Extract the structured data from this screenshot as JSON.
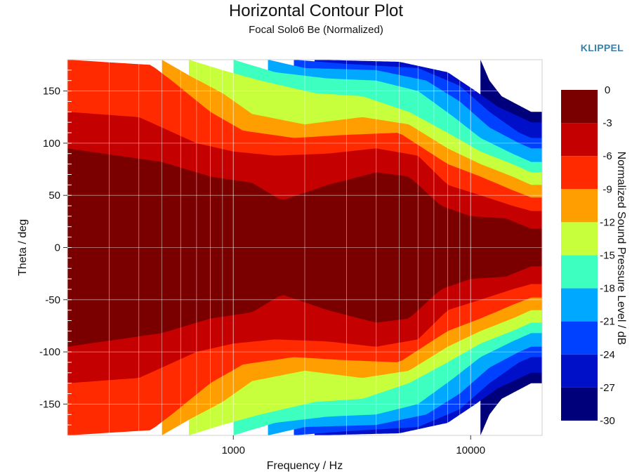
{
  "header": {
    "title": "Horizontal Contour Plot",
    "subtitle": "Focal Solo6 Be (Normalized)",
    "brand": "KLIPPEL",
    "brand_color": "#3a7fa8"
  },
  "chart_data": {
    "type": "heatmap",
    "title": "Horizontal Contour Plot",
    "subtitle": "Focal Solo6 Be (Normalized)",
    "xlabel": "Frequency / Hz",
    "ylabel": "Theta / deg",
    "x_scale": "log",
    "xlim": [
      200,
      20000
    ],
    "ylim": [
      -180,
      180
    ],
    "x_ticks": [
      {
        "value": 1000,
        "label": "1000"
      },
      {
        "value": 10000,
        "label": "10000"
      }
    ],
    "y_ticks": [
      {
        "value": 150,
        "label": "150"
      },
      {
        "value": 100,
        "label": "100"
      },
      {
        "value": 50,
        "label": "50"
      },
      {
        "value": 0,
        "label": "0"
      },
      {
        "value": -50,
        "label": "-50"
      },
      {
        "value": -100,
        "label": "-100"
      },
      {
        "value": -150,
        "label": "-150"
      }
    ],
    "grid": true,
    "colorbar": {
      "label": "Normalized Sound Pressure Level / dB",
      "range": [
        -30,
        0
      ],
      "ticks": [
        {
          "value": 0,
          "label": "0"
        },
        {
          "value": -3,
          "label": "-3"
        },
        {
          "value": -6,
          "label": "-6"
        },
        {
          "value": -9,
          "label": "-9"
        },
        {
          "value": -12,
          "label": "-12"
        },
        {
          "value": -15,
          "label": "-15"
        },
        {
          "value": -18,
          "label": "-18"
        },
        {
          "value": -21,
          "label": "-21"
        },
        {
          "value": -24,
          "label": "-24"
        },
        {
          "value": -27,
          "label": "-27"
        },
        {
          "value": -30,
          "label": "-30"
        }
      ],
      "bands": [
        {
          "from": 0,
          "to": -3,
          "color": "#7a0000"
        },
        {
          "from": -3,
          "to": -6,
          "color": "#c40000"
        },
        {
          "from": -6,
          "to": -9,
          "color": "#ff2a00"
        },
        {
          "from": -9,
          "to": -12,
          "color": "#ff9e00"
        },
        {
          "from": -12,
          "to": -15,
          "color": "#c8ff3c"
        },
        {
          "from": -15,
          "to": -18,
          "color": "#3cffc0"
        },
        {
          "from": -18,
          "to": -21,
          "color": "#00a8ff"
        },
        {
          "from": -21,
          "to": -24,
          "color": "#0040ff"
        },
        {
          "from": -24,
          "to": -27,
          "color": "#0010c8"
        },
        {
          "from": -27,
          "to": -30,
          "color": "#00007a"
        }
      ]
    },
    "contours": [
      {
        "level": -3,
        "half_width_deg": [
          {
            "f": 200,
            "deg": 95
          },
          {
            "f": 500,
            "deg": 82
          },
          {
            "f": 800,
            "deg": 68
          },
          {
            "f": 1200,
            "deg": 62
          },
          {
            "f": 1600,
            "deg": 45
          },
          {
            "f": 2500,
            "deg": 60
          },
          {
            "f": 4000,
            "deg": 72
          },
          {
            "f": 5500,
            "deg": 68
          },
          {
            "f": 7500,
            "deg": 40
          },
          {
            "f": 10000,
            "deg": 30
          },
          {
            "f": 14000,
            "deg": 28
          },
          {
            "f": 18000,
            "deg": 18
          }
        ]
      },
      {
        "level": -6,
        "half_width_deg": [
          {
            "f": 200,
            "deg": 130
          },
          {
            "f": 400,
            "deg": 125
          },
          {
            "f": 700,
            "deg": 100
          },
          {
            "f": 1000,
            "deg": 92
          },
          {
            "f": 1500,
            "deg": 88
          },
          {
            "f": 2500,
            "deg": 90
          },
          {
            "f": 4000,
            "deg": 95
          },
          {
            "f": 6000,
            "deg": 88
          },
          {
            "f": 8000,
            "deg": 60
          },
          {
            "f": 11000,
            "deg": 50
          },
          {
            "f": 15000,
            "deg": 40
          },
          {
            "f": 18000,
            "deg": 35
          }
        ]
      },
      {
        "level": -9,
        "half_width_deg": [
          {
            "f": 200,
            "deg": 180
          },
          {
            "f": 450,
            "deg": 175
          },
          {
            "f": 550,
            "deg": 160
          },
          {
            "f": 800,
            "deg": 130
          },
          {
            "f": 1100,
            "deg": 112
          },
          {
            "f": 1800,
            "deg": 105
          },
          {
            "f": 3000,
            "deg": 108
          },
          {
            "f": 5000,
            "deg": 110
          },
          {
            "f": 8000,
            "deg": 80
          },
          {
            "f": 11000,
            "deg": 68
          },
          {
            "f": 15000,
            "deg": 55
          },
          {
            "f": 18000,
            "deg": 48
          }
        ]
      },
      {
        "level": -12,
        "half_width_deg": [
          {
            "f": 500,
            "deg": 180
          },
          {
            "f": 650,
            "deg": 165
          },
          {
            "f": 900,
            "deg": 148
          },
          {
            "f": 1200,
            "deg": 128
          },
          {
            "f": 2000,
            "deg": 118
          },
          {
            "f": 3500,
            "deg": 125
          },
          {
            "f": 5500,
            "deg": 118
          },
          {
            "f": 8000,
            "deg": 95
          },
          {
            "f": 11000,
            "deg": 80
          },
          {
            "f": 15000,
            "deg": 68
          },
          {
            "f": 18000,
            "deg": 60
          }
        ]
      },
      {
        "level": -15,
        "half_width_deg": [
          {
            "f": 650,
            "deg": 180
          },
          {
            "f": 900,
            "deg": 170
          },
          {
            "f": 1300,
            "deg": 160
          },
          {
            "f": 2200,
            "deg": 148
          },
          {
            "f": 3500,
            "deg": 145
          },
          {
            "f": 5500,
            "deg": 130
          },
          {
            "f": 8000,
            "deg": 110
          },
          {
            "f": 11000,
            "deg": 92
          },
          {
            "f": 15000,
            "deg": 80
          },
          {
            "f": 18000,
            "deg": 72
          }
        ]
      },
      {
        "level": -18,
        "half_width_deg": [
          {
            "f": 1000,
            "deg": 180
          },
          {
            "f": 1500,
            "deg": 168
          },
          {
            "f": 2500,
            "deg": 162
          },
          {
            "f": 4000,
            "deg": 160
          },
          {
            "f": 6000,
            "deg": 150
          },
          {
            "f": 8500,
            "deg": 125
          },
          {
            "f": 11000,
            "deg": 105
          },
          {
            "f": 15000,
            "deg": 90
          },
          {
            "f": 18000,
            "deg": 82
          }
        ]
      },
      {
        "level": -21,
        "half_width_deg": [
          {
            "f": 1400,
            "deg": 180
          },
          {
            "f": 2000,
            "deg": 172
          },
          {
            "f": 4000,
            "deg": 170
          },
          {
            "f": 6500,
            "deg": 160
          },
          {
            "f": 9000,
            "deg": 140
          },
          {
            "f": 12000,
            "deg": 115
          },
          {
            "f": 16000,
            "deg": 100
          },
          {
            "f": 18000,
            "deg": 95
          }
        ]
      },
      {
        "level": -24,
        "half_width_deg": [
          {
            "f": 1800,
            "deg": 180
          },
          {
            "f": 3000,
            "deg": 176
          },
          {
            "f": 6000,
            "deg": 172
          },
          {
            "f": 9000,
            "deg": 155
          },
          {
            "f": 12000,
            "deg": 130
          },
          {
            "f": 16000,
            "deg": 110
          },
          {
            "f": 18000,
            "deg": 105
          }
        ]
      },
      {
        "level": -27,
        "half_width_deg": [
          {
            "f": 2200,
            "deg": 180
          },
          {
            "f": 5000,
            "deg": 178
          },
          {
            "f": 8000,
            "deg": 168
          },
          {
            "f": 10500,
            "deg": 150
          },
          {
            "f": 13000,
            "deg": 135
          },
          {
            "f": 18000,
            "deg": 120
          }
        ]
      },
      {
        "level": -30,
        "half_width_deg": [
          {
            "f": 11000,
            "deg": 180
          },
          {
            "f": 12000,
            "deg": 160
          },
          {
            "f": 13500,
            "deg": 145
          },
          {
            "f": 18000,
            "deg": 130
          }
        ]
      }
    ]
  }
}
